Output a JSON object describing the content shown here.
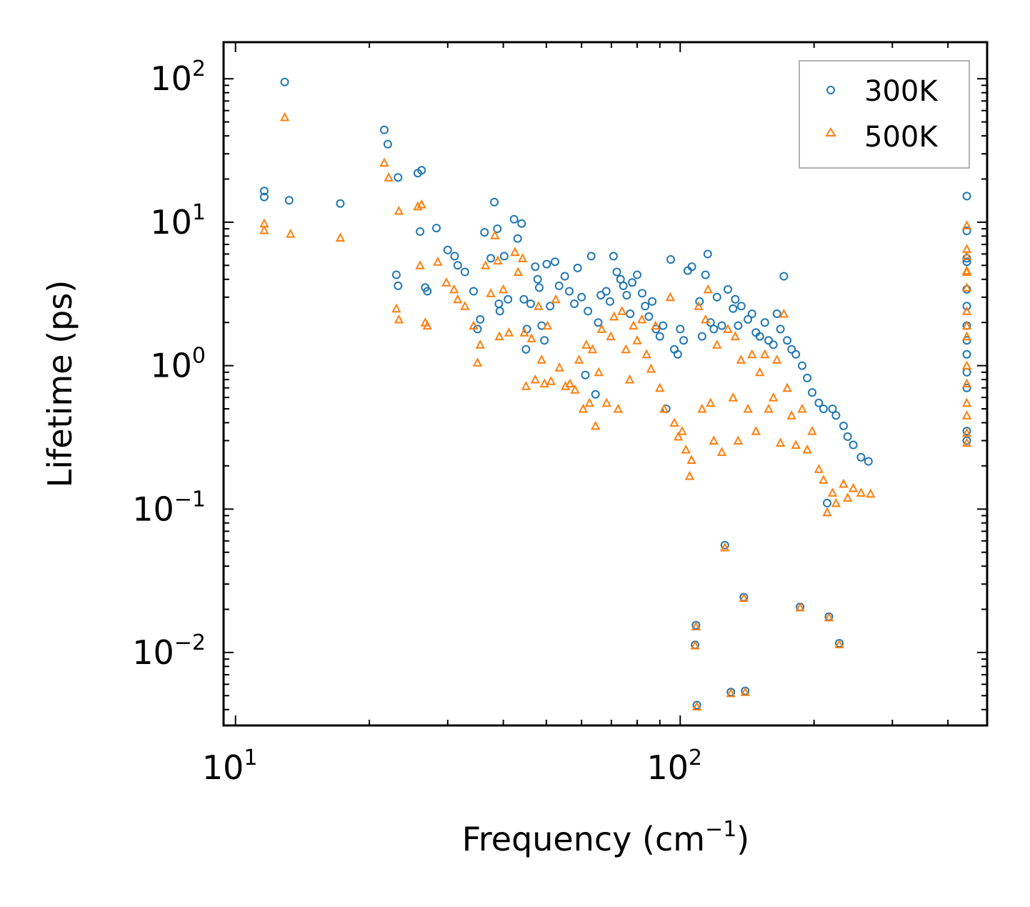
{
  "chart_data": {
    "type": "scatter",
    "title": "",
    "xlabel": "Frequency (cm",
    "xlabel_sup": "−1",
    "xlabel_close": ")",
    "ylabel": "Lifetime (ps)",
    "xscale": "log",
    "yscale": "log",
    "xlim": [
      9.4,
      490
    ],
    "ylim": [
      0.0031,
      180
    ],
    "x_ticks": [
      {
        "value": 10,
        "base": "10",
        "exp": "1"
      },
      {
        "value": 100,
        "base": "10",
        "exp": "2"
      }
    ],
    "y_ticks": [
      {
        "value": 100,
        "base": "10",
        "exp": "2"
      },
      {
        "value": 10,
        "base": "10",
        "exp": "1"
      },
      {
        "value": 1,
        "base": "10",
        "exp": "0"
      },
      {
        "value": 0.1,
        "base": "10",
        "exp": "−1"
      },
      {
        "value": 0.01,
        "base": "10",
        "exp": "−2"
      }
    ],
    "legend_position": "top-right",
    "series": [
      {
        "name": "300K",
        "marker": "circle",
        "color": "#1f77b4",
        "points": [
          [
            11.6,
            16.5
          ],
          [
            11.6,
            15.0
          ],
          [
            12.9,
            95
          ],
          [
            13.2,
            14.2
          ],
          [
            17.2,
            13.5
          ],
          [
            21.6,
            44
          ],
          [
            22.0,
            35
          ],
          [
            23.2,
            20.5
          ],
          [
            23.0,
            4.3
          ],
          [
            23.2,
            3.6
          ],
          [
            25.7,
            22
          ],
          [
            26.2,
            23
          ],
          [
            26.0,
            8.6
          ],
          [
            26.7,
            3.5
          ],
          [
            27.0,
            3.3
          ],
          [
            28.3,
            9.1
          ],
          [
            30.0,
            6.4
          ],
          [
            31.1,
            5.8
          ],
          [
            31.6,
            5.0
          ],
          [
            32.8,
            4.5
          ],
          [
            34.3,
            3.3
          ],
          [
            35.0,
            1.8
          ],
          [
            35.5,
            2.1
          ],
          [
            36.3,
            8.5
          ],
          [
            37.5,
            5.6
          ],
          [
            38.2,
            13.8
          ],
          [
            38.8,
            9.0
          ],
          [
            39.1,
            2.7
          ],
          [
            39.3,
            2.4
          ],
          [
            40.2,
            5.8
          ],
          [
            41.0,
            2.9
          ],
          [
            42.3,
            10.5
          ],
          [
            43.1,
            7.7
          ],
          [
            44.0,
            9.8
          ],
          [
            44.5,
            2.9
          ],
          [
            45.2,
            1.8
          ],
          [
            45.0,
            1.3
          ],
          [
            46.1,
            2.7
          ],
          [
            47.2,
            4.9
          ],
          [
            47.8,
            4.0
          ],
          [
            48.2,
            3.5
          ],
          [
            48.8,
            1.9
          ],
          [
            49.5,
            1.5
          ],
          [
            50.1,
            5.1
          ],
          [
            51.0,
            2.6
          ],
          [
            52.3,
            5.3
          ],
          [
            53.4,
            3.6
          ],
          [
            55.0,
            4.2
          ],
          [
            56.3,
            3.3
          ],
          [
            57.8,
            2.7
          ],
          [
            58.8,
            4.8
          ],
          [
            60.0,
            3.0
          ],
          [
            61.2,
            0.86
          ],
          [
            62.0,
            2.4
          ],
          [
            63.1,
            5.8
          ],
          [
            64.5,
            0.63
          ],
          [
            65.4,
            2.0
          ],
          [
            66.3,
            3.1
          ],
          [
            68.2,
            3.3
          ],
          [
            69.5,
            2.8
          ],
          [
            70.8,
            5.8
          ],
          [
            72.0,
            4.5
          ],
          [
            73.4,
            4.0
          ],
          [
            74.5,
            3.6
          ],
          [
            75.8,
            3.1
          ],
          [
            77.2,
            2.3
          ],
          [
            78.0,
            3.8
          ],
          [
            80.0,
            4.3
          ],
          [
            82.1,
            3.2
          ],
          [
            83.4,
            2.6
          ],
          [
            85.0,
            2.2
          ],
          [
            86.5,
            2.8
          ],
          [
            88.2,
            1.8
          ],
          [
            90.0,
            1.6
          ],
          [
            91.5,
            1.9
          ],
          [
            93.0,
            0.5
          ],
          [
            95.2,
            5.5
          ],
          [
            97.0,
            1.3
          ],
          [
            98.7,
            1.2
          ],
          [
            100.0,
            1.8
          ],
          [
            101.8,
            1.5
          ],
          [
            104.0,
            4.6
          ],
          [
            106.2,
            4.9
          ],
          [
            108.0,
            0.0113
          ],
          [
            108.5,
            0.0155
          ],
          [
            109.0,
            0.0043
          ],
          [
            110.5,
            2.8
          ],
          [
            112.0,
            1.6
          ],
          [
            114.0,
            4.3
          ],
          [
            115.3,
            6.0
          ],
          [
            117.0,
            2.0
          ],
          [
            119.0,
            1.8
          ],
          [
            121.0,
            3.0
          ],
          [
            124.0,
            1.9
          ],
          [
            126.0,
            0.056
          ],
          [
            128.0,
            3.4
          ],
          [
            130.0,
            0.0053
          ],
          [
            131.5,
            2.5
          ],
          [
            133.0,
            2.9
          ],
          [
            135.0,
            1.9
          ],
          [
            137.2,
            2.6
          ],
          [
            139.0,
            0.0243
          ],
          [
            140.0,
            0.0054
          ],
          [
            142.0,
            2.1
          ],
          [
            145.0,
            2.3
          ],
          [
            148.0,
            1.7
          ],
          [
            151.0,
            1.6
          ],
          [
            155.0,
            2.0
          ],
          [
            158.0,
            1.5
          ],
          [
            162.0,
            1.4
          ],
          [
            165.0,
            2.3
          ],
          [
            168.0,
            1.8
          ],
          [
            171.0,
            4.2
          ],
          [
            174.0,
            1.5
          ],
          [
            178.0,
            1.3
          ],
          [
            182.0,
            1.2
          ],
          [
            186.0,
            0.0208
          ],
          [
            188.0,
            1.0
          ],
          [
            193.0,
            0.82
          ],
          [
            198.0,
            0.65
          ],
          [
            205.0,
            0.55
          ],
          [
            210.0,
            0.5
          ],
          [
            214.0,
            0.11
          ],
          [
            216.0,
            0.0178
          ],
          [
            220.0,
            0.5
          ],
          [
            224.0,
            0.45
          ],
          [
            228.0,
            0.0116
          ],
          [
            233.0,
            0.38
          ],
          [
            238.0,
            0.32
          ],
          [
            245.0,
            0.28
          ],
          [
            255.0,
            0.23
          ],
          [
            265.0,
            0.215
          ],
          [
            441.0,
            15.2
          ],
          [
            441.0,
            8.7
          ],
          [
            441.0,
            5.6
          ],
          [
            441.0,
            5.3
          ],
          [
            441.0,
            3.4
          ],
          [
            441.0,
            2.6
          ],
          [
            441.0,
            1.9
          ],
          [
            441.0,
            1.5
          ],
          [
            441.0,
            1.2
          ],
          [
            441.0,
            0.9
          ],
          [
            441.0,
            0.7
          ],
          [
            441.0,
            0.35
          ],
          [
            441.0,
            0.3
          ]
        ]
      },
      {
        "name": "500K",
        "marker": "triangle",
        "color": "#ff7f0e",
        "points": [
          [
            11.6,
            9.8
          ],
          [
            11.6,
            8.8
          ],
          [
            12.9,
            54
          ],
          [
            13.3,
            8.3
          ],
          [
            17.2,
            7.8
          ],
          [
            21.6,
            26
          ],
          [
            22.1,
            20.5
          ],
          [
            23.3,
            12.0
          ],
          [
            23.0,
            2.5
          ],
          [
            23.3,
            2.1
          ],
          [
            25.7,
            12.9
          ],
          [
            26.2,
            13.3
          ],
          [
            26.0,
            5.0
          ],
          [
            26.7,
            2.0
          ],
          [
            27.0,
            1.9
          ],
          [
            28.5,
            5.3
          ],
          [
            29.8,
            3.8
          ],
          [
            31.0,
            3.4
          ],
          [
            31.6,
            2.9
          ],
          [
            32.8,
            2.6
          ],
          [
            34.3,
            1.9
          ],
          [
            35.0,
            1.05
          ],
          [
            35.5,
            1.4
          ],
          [
            36.5,
            5.0
          ],
          [
            37.5,
            3.2
          ],
          [
            38.3,
            8.1
          ],
          [
            38.9,
            5.4
          ],
          [
            39.2,
            1.6
          ],
          [
            40.0,
            3.4
          ],
          [
            41.2,
            1.7
          ],
          [
            42.5,
            6.2
          ],
          [
            43.2,
            4.5
          ],
          [
            44.2,
            5.6
          ],
          [
            44.6,
            1.7
          ],
          [
            45.0,
            0.72
          ],
          [
            46.3,
            1.55
          ],
          [
            47.2,
            0.8
          ],
          [
            48.0,
            2.6
          ],
          [
            48.8,
            1.1
          ],
          [
            49.5,
            0.75
          ],
          [
            50.3,
            1.9
          ],
          [
            51.2,
            0.78
          ],
          [
            52.5,
            2.9
          ],
          [
            53.5,
            0.97
          ],
          [
            55.2,
            0.72
          ],
          [
            56.5,
            0.75
          ],
          [
            58.0,
            0.68
          ],
          [
            59.2,
            1.1
          ],
          [
            60.5,
            0.5
          ],
          [
            61.5,
            1.4
          ],
          [
            62.5,
            0.55
          ],
          [
            63.5,
            1.3
          ],
          [
            64.5,
            0.38
          ],
          [
            65.6,
            0.9
          ],
          [
            66.6,
            1.8
          ],
          [
            68.3,
            0.55
          ],
          [
            69.8,
            1.6
          ],
          [
            71.0,
            2.2
          ],
          [
            72.5,
            0.5
          ],
          [
            74.0,
            2.4
          ],
          [
            75.5,
            1.3
          ],
          [
            77.0,
            0.8
          ],
          [
            78.5,
            1.9
          ],
          [
            80.0,
            1.5
          ],
          [
            82.0,
            2.1
          ],
          [
            84.0,
            1.2
          ],
          [
            86.0,
            0.95
          ],
          [
            88.0,
            1.9
          ],
          [
            90.0,
            0.7
          ],
          [
            92.0,
            0.5
          ],
          [
            95.0,
            3.0
          ],
          [
            97.0,
            0.4
          ],
          [
            99.0,
            0.32
          ],
          [
            101.0,
            0.35
          ],
          [
            103.0,
            0.26
          ],
          [
            105.0,
            0.17
          ],
          [
            106.0,
            0.22
          ],
          [
            108.0,
            0.0112
          ],
          [
            108.5,
            0.0152
          ],
          [
            109.0,
            0.0042
          ],
          [
            110.0,
            2.6
          ],
          [
            112.0,
            0.5
          ],
          [
            114.0,
            2.1
          ],
          [
            115.5,
            3.4
          ],
          [
            117.0,
            0.55
          ],
          [
            119.0,
            0.3
          ],
          [
            121.0,
            1.4
          ],
          [
            124.0,
            0.25
          ],
          [
            126.0,
            0.054
          ],
          [
            128.0,
            1.8
          ],
          [
            130.0,
            0.0052
          ],
          [
            131.5,
            0.6
          ],
          [
            133.0,
            1.6
          ],
          [
            135.0,
            0.3
          ],
          [
            137.0,
            1.1
          ],
          [
            139.0,
            0.024
          ],
          [
            140.0,
            0.0053
          ],
          [
            142.0,
            0.5
          ],
          [
            145.0,
            1.2
          ],
          [
            148.0,
            0.35
          ],
          [
            151.0,
            0.9
          ],
          [
            155.0,
            1.2
          ],
          [
            158.0,
            0.5
          ],
          [
            162.0,
            0.6
          ],
          [
            165.0,
            1.1
          ],
          [
            168.0,
            0.29
          ],
          [
            171.0,
            2.3
          ],
          [
            174.0,
            0.7
          ],
          [
            178.0,
            0.45
          ],
          [
            182.0,
            0.28
          ],
          [
            186.0,
            0.0206
          ],
          [
            188.0,
            0.5
          ],
          [
            193.0,
            0.26
          ],
          [
            198.0,
            0.35
          ],
          [
            205.0,
            0.19
          ],
          [
            210.0,
            0.16
          ],
          [
            214.0,
            0.095
          ],
          [
            216.0,
            0.0176
          ],
          [
            220.0,
            0.13
          ],
          [
            224.0,
            0.11
          ],
          [
            228.0,
            0.0114
          ],
          [
            233.0,
            0.15
          ],
          [
            238.0,
            0.12
          ],
          [
            245.0,
            0.14
          ],
          [
            255.0,
            0.13
          ],
          [
            268.0,
            0.128
          ],
          [
            441.0,
            9.5
          ],
          [
            441.0,
            6.5
          ],
          [
            441.0,
            5.8
          ],
          [
            441.0,
            4.6
          ],
          [
            441.0,
            4.5
          ],
          [
            441.0,
            3.5
          ],
          [
            441.0,
            2.4
          ],
          [
            441.0,
            1.9
          ],
          [
            441.0,
            1.6
          ],
          [
            441.0,
            1.0
          ],
          [
            441.0,
            0.75
          ],
          [
            441.0,
            0.55
          ],
          [
            441.0,
            0.45
          ],
          [
            441.0,
            0.34
          ],
          [
            441.0,
            0.29
          ]
        ]
      }
    ]
  }
}
